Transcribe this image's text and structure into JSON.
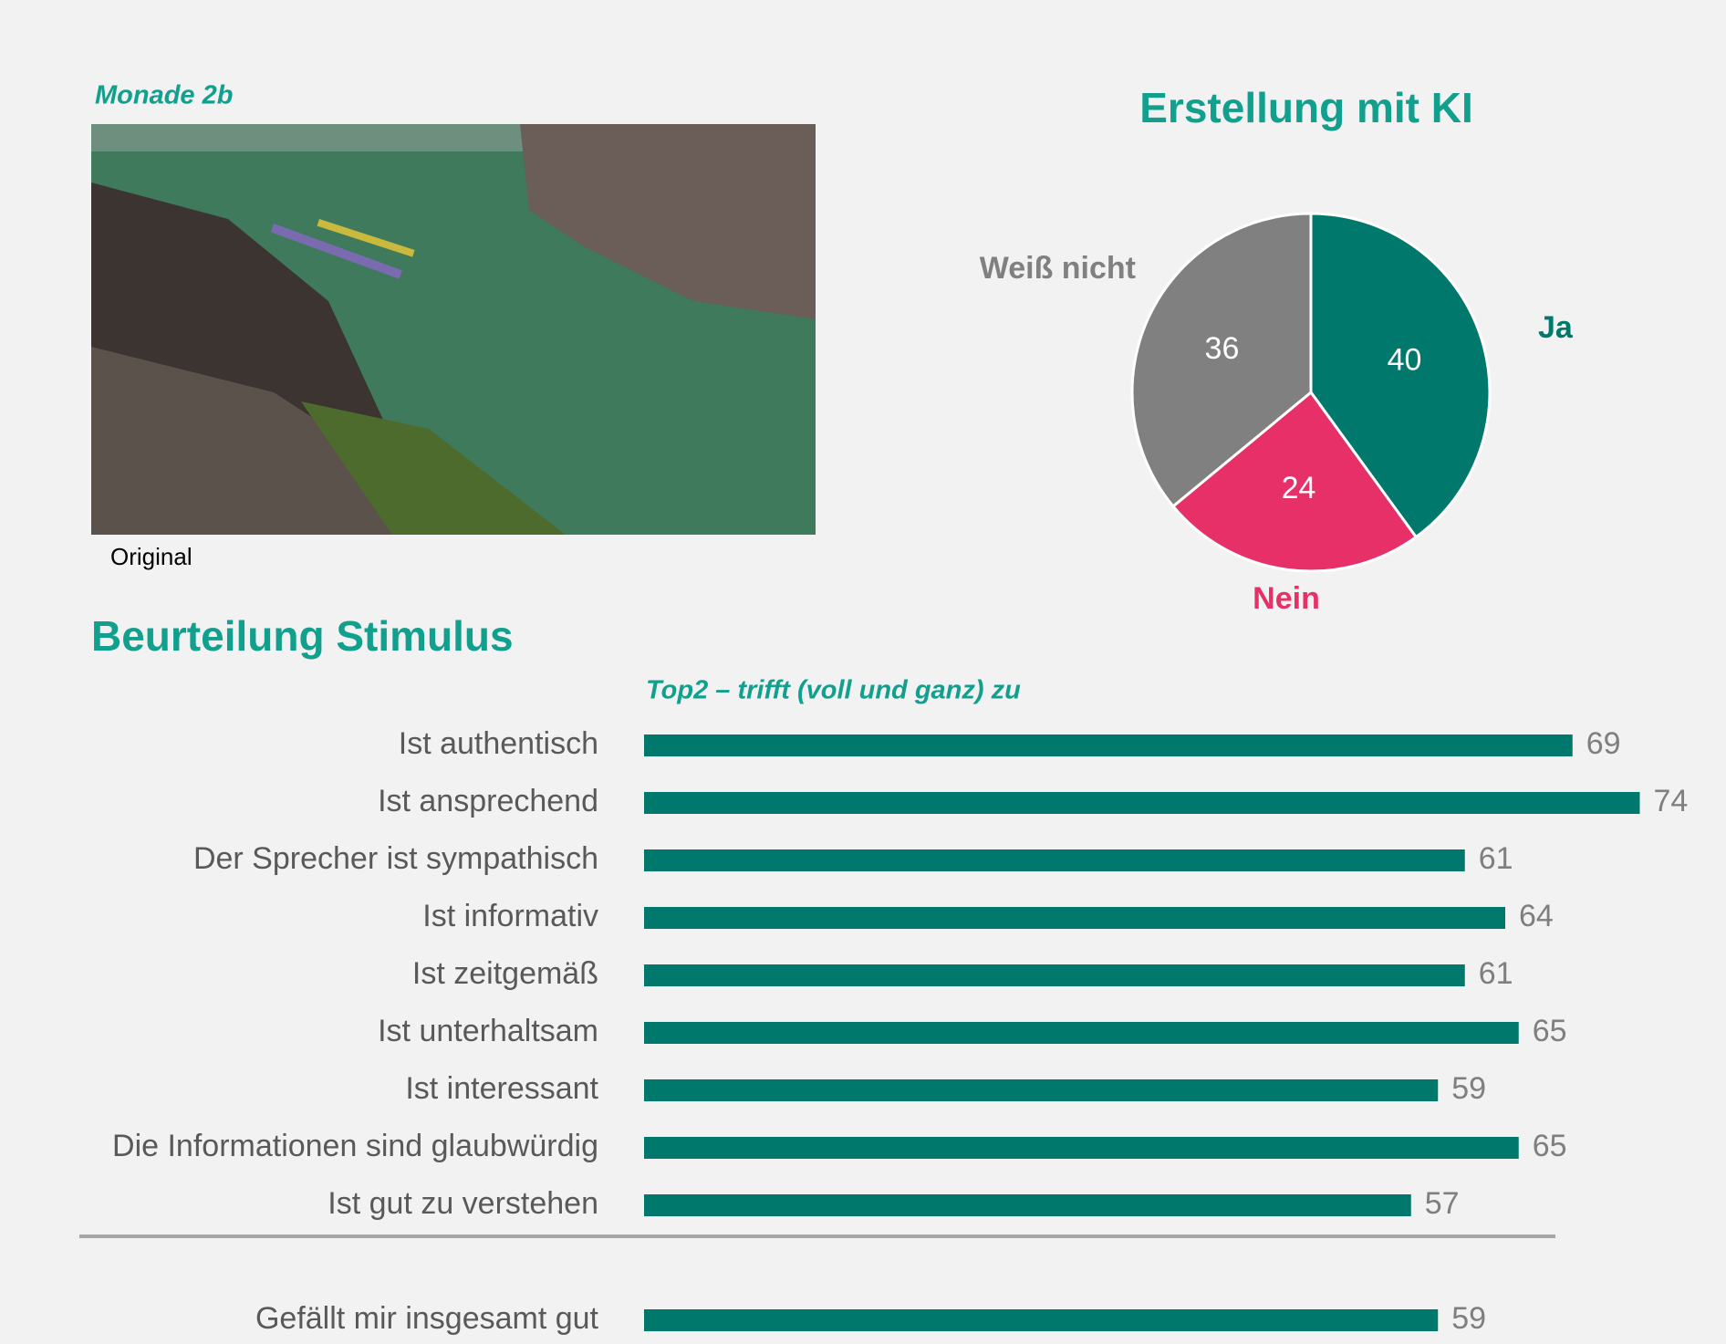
{
  "label": "Monade 2b",
  "caption": "Original",
  "chart_data": [
    {
      "type": "pie",
      "title": "Erstellung mit KI",
      "categories": [
        "Ja",
        "Nein",
        "Weiß nicht"
      ],
      "values": [
        40,
        24,
        36
      ],
      "colors": [
        "#00786b",
        "#e63067",
        "#808080"
      ]
    },
    {
      "type": "hbar",
      "title": "Beurteilung Stimulus",
      "subtitle": "Top2 – trifft (voll und ganz) zu",
      "categories": [
        "Ist authentisch",
        "Ist ansprechend",
        "Der Sprecher ist sympathisch",
        "Ist informativ",
        "Ist zeitgemäß",
        "Ist unterhaltsam",
        "Ist interessant",
        "Die Informationen sind glaubwürdig",
        "Ist gut zu verstehen",
        "Gefällt mir insgesamt gut"
      ],
      "values": [
        69,
        74,
        61,
        64,
        61,
        65,
        59,
        65,
        57,
        59
      ],
      "color": "#00786b",
      "xlim": [
        0,
        80
      ]
    }
  ]
}
